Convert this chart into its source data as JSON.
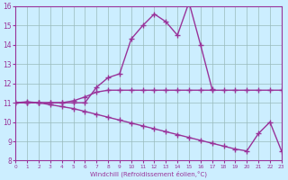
{
  "title": "",
  "xlabel": "Windchill (Refroidissement éolien,°C)",
  "bg_color": "#cceeff",
  "line_color": "#993399",
  "grid_color": "#99bbbb",
  "xmin": 0,
  "xmax": 23,
  "ymin": 8,
  "ymax": 16,
  "line1_x": [
    0,
    1,
    2,
    3,
    4,
    5,
    6,
    7,
    8,
    9,
    10,
    11,
    12,
    13,
    14,
    15,
    16,
    17
  ],
  "line1_y": [
    11,
    11,
    11,
    11,
    11,
    11,
    11,
    11.8,
    12.3,
    12.5,
    14.3,
    15.0,
    15.6,
    15.2,
    14.5,
    16.2,
    14.0,
    11.7
  ],
  "line2_x": [
    0,
    1,
    2,
    3,
    4,
    5,
    6,
    7,
    8,
    9,
    10,
    11,
    12,
    13,
    14,
    15,
    16,
    17,
    18,
    19,
    20,
    21,
    22,
    23
  ],
  "line2_y": [
    11,
    11,
    11,
    10.9,
    10.8,
    10.7,
    10.55,
    10.4,
    10.25,
    10.1,
    9.95,
    9.8,
    9.65,
    9.5,
    9.35,
    9.2,
    9.05,
    8.9,
    8.75,
    8.6,
    8.5,
    9.4,
    10.0,
    8.5
  ],
  "line3_x": [
    0,
    1,
    2,
    3,
    4,
    5,
    6,
    7,
    8,
    9,
    10,
    11,
    12,
    13,
    14,
    15,
    16,
    17,
    18,
    19,
    20,
    21,
    22,
    23
  ],
  "line3_y": [
    11,
    11.05,
    11,
    11,
    11,
    11.1,
    11.3,
    11.55,
    11.65,
    11.65,
    11.65,
    11.65,
    11.65,
    11.65,
    11.65,
    11.65,
    11.65,
    11.65,
    11.65,
    11.65,
    11.65,
    11.65,
    11.65,
    11.65
  ]
}
